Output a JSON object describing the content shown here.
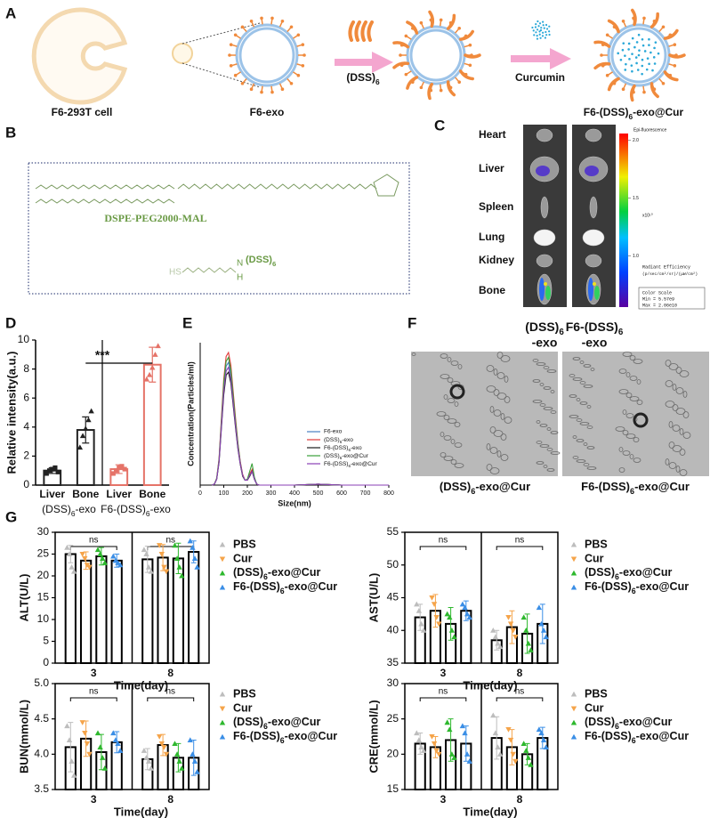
{
  "panel_labels": [
    "A",
    "B",
    "C",
    "D",
    "E",
    "F",
    "G"
  ],
  "panel_a": {
    "labels": [
      "F6-293T cell",
      "F6-exo",
      "F6-(DSS)6-exo@Cur"
    ],
    "steps": [
      "(DSS)6",
      "Curcumin"
    ]
  },
  "panel_b": {
    "name": "DSPE-PEG2000-MAL",
    "thiol": "HS",
    "amine_n": "N",
    "amine_h": "H",
    "group": "(DSS)6"
  },
  "panel_c": {
    "organs": [
      "Heart",
      "Liver",
      "Spleen",
      "Lung",
      "Kidney",
      "Bone"
    ],
    "columns": [
      [
        "(DSS)6",
        "-exo"
      ],
      [
        "F6-(DSS)6",
        "-exo"
      ]
    ],
    "colorbar": {
      "title": "Epi-fluorescence",
      "lim": [
        0.557,
        2.06
      ],
      "ticks": [
        {
          "value": 1,
          "label": "1.0"
        },
        {
          "value": 1.5,
          "label": "1.5"
        },
        {
          "value": 2,
          "label": "2.0"
        }
      ],
      "exponent": "x10¹⁰",
      "unit_title": "Radiant Efficiency",
      "unit": "(p/sec/cm²/sr)/(μW/cm²)",
      "scale_title": "Color Scale",
      "min": "Min = 5.57e9",
      "max": "Max = 2.06e10"
    }
  },
  "panel_f": {
    "labels": [
      "(DSS)6-exo@Cur",
      "F6-(DSS)6-exo@Cur"
    ]
  },
  "chart_data": [
    {
      "type": "bar",
      "ylabel": "Relative intensity(a.u.)",
      "categories": [
        "Liver",
        "Bone",
        "Liver",
        "Bone"
      ],
      "groups": [
        "(DSS)6-exo",
        "F6-(DSS)6-exo"
      ],
      "colors": [
        "#222222",
        "#222222",
        "#e57368",
        "#e57368"
      ],
      "values": [
        1.0,
        3.8,
        1.1,
        8.3
      ],
      "errors": [
        0.2,
        0.9,
        0.3,
        1.2
      ],
      "points": [
        [
          0.8,
          1.0,
          1.1,
          1.2,
          0.9
        ],
        [
          2.6,
          3.4,
          3.9,
          4.5,
          5.1
        ],
        [
          0.8,
          1.0,
          1.2,
          1.3,
          1.1
        ],
        [
          7.3,
          7.6,
          8.1,
          9.0,
          9.6
        ]
      ],
      "ylim": [
        0,
        10
      ],
      "yticks": [
        0,
        2,
        4,
        6,
        8,
        10
      ],
      "annotations": [
        "***"
      ]
    },
    {
      "type": "line",
      "xlabel": "Size(nm)",
      "ylabel": "Concentration(Particles/ml)",
      "x": [
        50,
        60,
        70,
        80,
        90,
        100,
        110,
        120,
        130,
        140,
        150,
        160,
        170,
        180,
        190,
        200,
        210,
        220,
        230,
        240,
        250,
        300,
        400,
        500,
        600,
        700,
        800
      ],
      "xlim": [
        0,
        800
      ],
      "xticks": [
        0,
        100,
        200,
        300,
        400,
        500,
        600,
        700,
        800
      ],
      "ylim": [
        0,
        1.45
      ],
      "series": [
        {
          "name": "F6-exo",
          "color": "#4a7fc1",
          "values": [
            0,
            0.01,
            0.06,
            0.25,
            0.63,
            1.0,
            1.21,
            1.25,
            1.13,
            0.88,
            0.63,
            0.4,
            0.23,
            0.1,
            0.05,
            0.05,
            0.1,
            0.15,
            0.06,
            0.01,
            0,
            0,
            0,
            0.01,
            0,
            0,
            0
          ]
        },
        {
          "name": "(DSS)6-exo",
          "color": "#e03a3a",
          "values": [
            0,
            0.01,
            0.07,
            0.27,
            0.68,
            1.08,
            1.31,
            1.35,
            1.22,
            0.95,
            0.68,
            0.43,
            0.24,
            0.11,
            0.05,
            0.05,
            0.11,
            0.16,
            0.07,
            0.01,
            0,
            0,
            0,
            0.01,
            0,
            0,
            0
          ]
        },
        {
          "name": "F6-(DSS)6-exo",
          "color": "#1a1a1a",
          "values": [
            0,
            0.01,
            0.06,
            0.23,
            0.58,
            0.92,
            1.12,
            1.15,
            1.04,
            0.81,
            0.58,
            0.37,
            0.21,
            0.09,
            0.05,
            0.05,
            0.09,
            0.14,
            0.06,
            0.01,
            0,
            0,
            0,
            0.01,
            0,
            0,
            0
          ]
        },
        {
          "name": "(DSS)6-exo@Cur",
          "color": "#3aa03a",
          "values": [
            0,
            0.01,
            0.07,
            0.26,
            0.65,
            1.04,
            1.26,
            1.3,
            1.17,
            0.91,
            0.65,
            0.42,
            0.23,
            0.1,
            0.05,
            0.06,
            0.14,
            0.22,
            0.08,
            0.01,
            0,
            0,
            0,
            0.01,
            0,
            0,
            0
          ]
        },
        {
          "name": "F6-(DSS)6-exo@Cur",
          "color": "#8a3fb5",
          "values": [
            0,
            0.01,
            0.06,
            0.24,
            0.6,
            0.96,
            1.16,
            1.2,
            1.08,
            0.84,
            0.6,
            0.38,
            0.22,
            0.1,
            0.05,
            0.05,
            0.1,
            0.14,
            0.06,
            0.01,
            0,
            0,
            0,
            0.01,
            0,
            0,
            0
          ]
        }
      ]
    },
    {
      "type": "bar",
      "ylabel": "ALT(U/L)",
      "xlabel": "Time(day)",
      "categories": [
        "3",
        "8"
      ],
      "ylim": [
        0,
        30
      ],
      "yticks": [
        0,
        5,
        10,
        15,
        20,
        25,
        30
      ],
      "annotations": [
        "ns",
        "ns"
      ],
      "series": [
        {
          "name": "PBS",
          "color": "#bdbdbd",
          "marker": "triangle",
          "values": [
            25,
            23.8
          ],
          "errors": [
            2,
            3
          ],
          "points": [
            [
              26.5,
              25,
              22,
              21
            ],
            [
              26,
              25,
              22,
              21
            ]
          ]
        },
        {
          "name": "Cur",
          "color": "#f5a44a",
          "marker": "triangle-down",
          "values": [
            23.5,
            24.2
          ],
          "errors": [
            2,
            3
          ],
          "points": [
            [
              25,
              24,
              22.5,
              22
            ],
            [
              27,
              25,
              22,
              21
            ]
          ]
        },
        {
          "name": "(DSS)6-exo@Cur",
          "color": "#2eb82e",
          "marker": "triangle",
          "values": [
            24.5,
            24
          ],
          "errors": [
            2,
            3.5
          ],
          "points": [
            [
              26,
              25,
              24,
              23
            ],
            [
              27,
              24,
              22,
              20
            ]
          ]
        },
        {
          "name": "F6-(DSS)6-exo@Cur",
          "color": "#3a8ee6",
          "marker": "triangle",
          "values": [
            23.5,
            25.5
          ],
          "errors": [
            1.5,
            2.5
          ],
          "points": [
            [
              24.5,
              23.5,
              23,
              22.5
            ],
            [
              28,
              26.5,
              24,
              22
            ]
          ]
        }
      ]
    },
    {
      "type": "bar",
      "ylabel": "AST(U/L)",
      "xlabel": "Time(day)",
      "categories": [
        "3",
        "8"
      ],
      "ylim": [
        35,
        55
      ],
      "yticks": [
        35,
        40,
        45,
        50,
        55
      ],
      "annotations": [
        "ns",
        "ns"
      ],
      "series": [
        {
          "name": "PBS",
          "color": "#bdbdbd",
          "marker": "triangle",
          "values": [
            42,
            38.5
          ],
          "errors": [
            2,
            1.5
          ],
          "points": [
            [
              44,
              43,
              41,
              40
            ],
            [
              40,
              39,
              38,
              37.5
            ]
          ]
        },
        {
          "name": "Cur",
          "color": "#f5a44a",
          "marker": "triangle-down",
          "values": [
            43,
            40.5
          ],
          "errors": [
            2.5,
            2.5
          ],
          "points": [
            [
              45,
              44,
              42,
              41
            ],
            [
              42,
              41,
              40,
              39
            ]
          ]
        },
        {
          "name": "(DSS)6-exo@Cur",
          "color": "#2eb82e",
          "marker": "triangle",
          "values": [
            41,
            39.5
          ],
          "errors": [
            2.5,
            3
          ],
          "points": [
            [
              42.5,
              42,
              40,
              39
            ],
            [
              42,
              40,
              38,
              37
            ]
          ]
        },
        {
          "name": "F6-(DSS)6-exo@Cur",
          "color": "#3a8ee6",
          "marker": "triangle",
          "values": [
            43,
            41
          ],
          "errors": [
            1.5,
            3
          ],
          "points": [
            [
              44,
              43.5,
              42.5,
              42
            ],
            [
              43.5,
              41,
              40,
              39
            ]
          ]
        }
      ]
    },
    {
      "type": "bar",
      "ylabel": "BUN(mmol/L)",
      "xlabel": "Time(day)",
      "categories": [
        "3",
        "8"
      ],
      "ylim": [
        3.5,
        5.0
      ],
      "yticks": [
        {
          "value": 3.5,
          "label": "3.5"
        },
        {
          "value": 4,
          "label": "4.0"
        },
        {
          "value": 4.5,
          "label": "4.5"
        },
        {
          "value": 5,
          "label": "5.0"
        }
      ],
      "annotations": [
        "ns",
        "ns"
      ],
      "series": [
        {
          "name": "PBS",
          "color": "#bdbdbd",
          "marker": "triangle",
          "values": [
            4.1,
            3.93
          ],
          "errors": [
            0.35,
            0.15
          ],
          "points": [
            [
              4.4,
              4.2,
              3.9,
              3.7
            ],
            [
              4.05,
              3.95,
              3.9,
              3.8
            ]
          ]
        },
        {
          "name": "Cur",
          "color": "#f5a44a",
          "marker": "triangle-down",
          "values": [
            4.22,
            4.13
          ],
          "errors": [
            0.25,
            0.15
          ],
          "points": [
            [
              4.45,
              4.3,
              4.15,
              4.0
            ],
            [
              4.25,
              4.15,
              4.1,
              4.0
            ]
          ]
        },
        {
          "name": "(DSS)6-exo@Cur",
          "color": "#2eb82e",
          "marker": "triangle",
          "values": [
            4.03,
            3.95
          ],
          "errors": [
            0.25,
            0.2
          ],
          "points": [
            [
              4.3,
              4.1,
              3.95,
              3.8
            ],
            [
              4.15,
              4.0,
              3.9,
              3.8
            ]
          ]
        },
        {
          "name": "F6-(DSS)6-exo@Cur",
          "color": "#3a8ee6",
          "marker": "triangle",
          "values": [
            4.17,
            3.95
          ],
          "errors": [
            0.15,
            0.25
          ],
          "points": [
            [
              4.3,
              4.2,
              4.15,
              4.05
            ],
            [
              4.2,
              4.0,
              3.9,
              3.75
            ]
          ]
        }
      ]
    },
    {
      "type": "bar",
      "ylabel": "CRE(mmol/L)",
      "xlabel": "Time(day)",
      "categories": [
        "3",
        "8"
      ],
      "ylim": [
        15,
        30
      ],
      "yticks": [
        15,
        20,
        25,
        30
      ],
      "annotations": [
        "ns",
        "ns"
      ],
      "series": [
        {
          "name": "PBS",
          "color": "#bdbdbd",
          "marker": "triangle",
          "values": [
            21.5,
            22.3
          ],
          "errors": [
            1.5,
            3
          ],
          "points": [
            [
              23,
              22,
              21,
              20.5
            ],
            [
              25.5,
              23,
              21,
              20
            ]
          ]
        },
        {
          "name": "Cur",
          "color": "#f5a44a",
          "marker": "triangle-down",
          "values": [
            21,
            21
          ],
          "errors": [
            1.5,
            2.5
          ],
          "points": [
            [
              22.5,
              21.5,
              20.5,
              20
            ],
            [
              23.5,
              22,
              20,
              19
            ]
          ]
        },
        {
          "name": "(DSS)6-exo@Cur",
          "color": "#2eb82e",
          "marker": "triangle",
          "values": [
            22,
            20
          ],
          "errors": [
            3,
            1.5
          ],
          "points": [
            [
              24.5,
              23.5,
              20,
              19.5
            ],
            [
              21.5,
              20.5,
              19.5,
              18.5
            ]
          ]
        },
        {
          "name": "F6-(DSS)6-exo@Cur",
          "color": "#3a8ee6",
          "marker": "triangle",
          "values": [
            21.5,
            22.3
          ],
          "errors": [
            2.5,
            1.5
          ],
          "points": [
            [
              24,
              23,
              20,
              19
            ],
            [
              23.5,
              23,
              22,
              21
            ]
          ]
        }
      ]
    }
  ]
}
